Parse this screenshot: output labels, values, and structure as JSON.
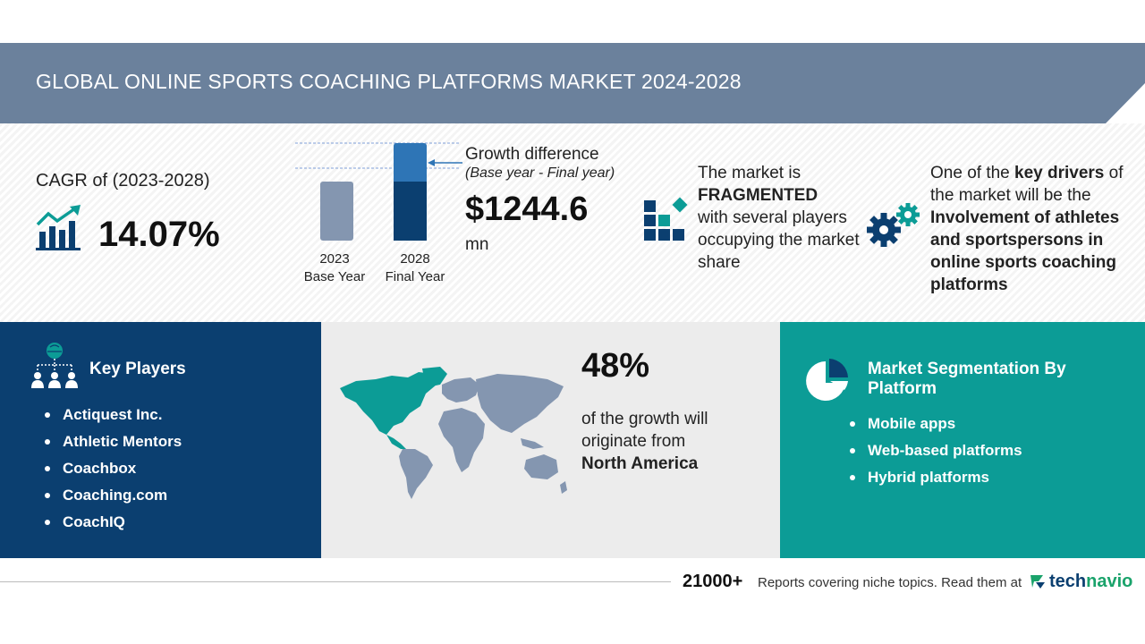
{
  "header": {
    "title": "GLOBAL ONLINE SPORTS COACHING PLATFORMS MARKET 2024-2028"
  },
  "cagr": {
    "label": "CAGR of (2023-2028)",
    "value": "14.07%",
    "icon": "growth-chart-icon"
  },
  "bars": {
    "base": {
      "year": "2023",
      "label": "Base Year"
    },
    "final": {
      "year": "2028",
      "label": "Final Year"
    }
  },
  "growth": {
    "title": "Growth difference",
    "subtitle": "(Base year - Final year)",
    "value": "$1244.6",
    "unit": "mn"
  },
  "market": {
    "line1": "The market is",
    "emphasis": "FRAGMENTED",
    "line2": "with several players occupying the market share",
    "icon": "fragmented-blocks-icon"
  },
  "drivers": {
    "prefix": "One of the ",
    "bold": "key drivers",
    "middle": " of the market will be the ",
    "driver": "Involvement of athletes and sportspersons in online sports coaching platforms",
    "icon": "gears-icon"
  },
  "key_players": {
    "title": "Key Players",
    "items": [
      "Actiquest Inc.",
      "Athletic Mentors",
      "Coachbox",
      "Coaching.com",
      "CoachIQ"
    ]
  },
  "geography": {
    "percent": "48%",
    "text": "of the growth will originate from",
    "region": "North America"
  },
  "segmentation": {
    "title": "Market Segmentation By Platform",
    "items": [
      "Mobile apps",
      "Web-based platforms",
      "Hybrid platforms"
    ]
  },
  "footer": {
    "count": "21000+",
    "text": "Reports covering niche topics. Read them at",
    "logo_tech": "tech",
    "logo_navio": "navio"
  },
  "colors": {
    "banner": "#6b819c",
    "navy": "#0b3f70",
    "teal": "#0c9c96",
    "base_bar": "#8496b0",
    "final_bar_top": "#2e75b6",
    "final_bar_bottom": "#0b3f70"
  }
}
